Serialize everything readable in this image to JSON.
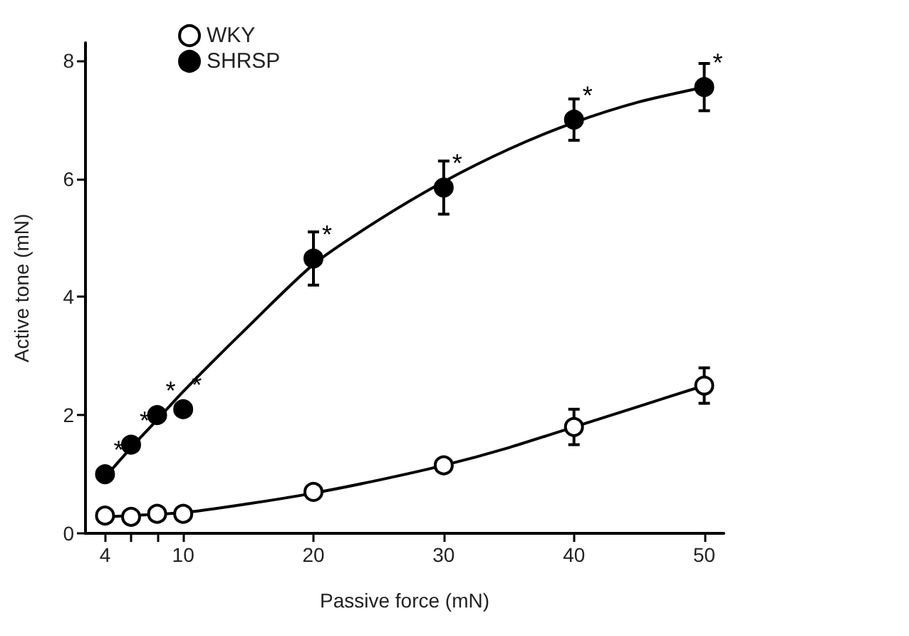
{
  "chart_data": {
    "type": "scatter",
    "xlabel": "Passive force (mN)",
    "ylabel": "Active tone (mN)",
    "xlim": [
      2.5,
      51.5
    ],
    "xticks": [
      4,
      {
        "value": 6,
        "label": null
      },
      {
        "value": 8,
        "label": null
      },
      10,
      20,
      30,
      40,
      50
    ],
    "ylim": [
      0,
      8.3
    ],
    "yticks": [
      0,
      2,
      4,
      6,
      8
    ],
    "grid": false,
    "legend": "top left",
    "marker": "circle",
    "series": [
      {
        "name": "WKY",
        "color": "#ffffff",
        "x": [
          4,
          6,
          8,
          10,
          20,
          30,
          40,
          50
        ],
        "values": [
          0.3,
          0.28,
          0.33,
          0.33,
          0.7,
          1.15,
          1.8,
          2.5
        ],
        "errors": [
          null,
          null,
          null,
          null,
          null,
          null,
          0.3,
          0.3
        ]
      },
      {
        "name": "SHRSP",
        "color": "#000000",
        "x": [
          4,
          6,
          8,
          10,
          20,
          30,
          40,
          50
        ],
        "values": [
          1.0,
          1.5,
          2.0,
          2.1,
          4.65,
          5.85,
          7.0,
          7.55
        ],
        "errors": [
          null,
          null,
          null,
          null,
          0.45,
          0.45,
          0.35,
          0.4
        ]
      },
      {
        "type": "line",
        "color": "#000000",
        "marker": "none",
        "x": [
          4,
          10,
          15,
          20,
          25,
          30,
          35,
          40,
          45,
          50
        ],
        "values": [
          0.28,
          0.35,
          0.5,
          0.68,
          0.9,
          1.15,
          1.45,
          1.8,
          2.15,
          2.5
        ]
      },
      {
        "type": "line",
        "color": "#000000",
        "marker": "none",
        "x": [
          4,
          6,
          8,
          10,
          15,
          20,
          25,
          30,
          35,
          40,
          45,
          50
        ],
        "values": [
          0.95,
          1.45,
          1.92,
          2.4,
          3.5,
          4.55,
          5.3,
          5.95,
          6.5,
          6.95,
          7.3,
          7.55
        ]
      }
    ],
    "annotations": [
      {
        "text": "*",
        "x": 4,
        "y": 1.0
      },
      {
        "text": "*",
        "x": 6,
        "y": 1.5
      },
      {
        "text": "*",
        "x": 8,
        "y": 2.0
      },
      {
        "text": "*",
        "x": 10,
        "y": 2.1
      },
      {
        "text": "*",
        "x": 20,
        "y": 4.65
      },
      {
        "text": "*",
        "x": 30,
        "y": 5.85
      },
      {
        "text": "*",
        "x": 40,
        "y": 7.0
      },
      {
        "text": "*",
        "x": 50,
        "y": 7.55
      }
    ]
  }
}
